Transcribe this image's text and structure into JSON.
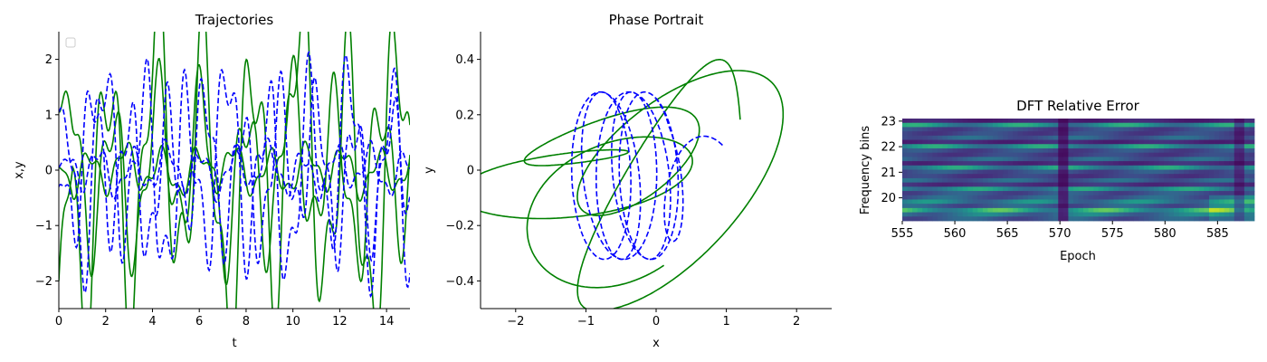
{
  "chart_data": [
    {
      "type": "line",
      "title": "Trajectories",
      "xlabel": "t",
      "ylabel": "x,y",
      "xlim": [
        0,
        15
      ],
      "ylim": [
        -2.5,
        2.5
      ],
      "xticks": [
        0,
        2,
        4,
        6,
        8,
        10,
        12,
        14
      ],
      "yticks": [
        -2,
        -1,
        0,
        1,
        2
      ],
      "grid": false,
      "legend": {
        "location": "upper-left",
        "entries": []
      },
      "colors": {
        "solid": "#008000",
        "dashed": "#0000ff"
      },
      "series": [
        {
          "style": "solid",
          "color": "#008000",
          "x0": 1.05,
          "A": 1.3,
          "period": 1.9,
          "phase": 0.2
        },
        {
          "style": "solid",
          "color": "#008000",
          "x0": -2.0,
          "A": 2.3,
          "period": 2.05,
          "phase": 1.4
        },
        {
          "style": "solid",
          "color": "#008000",
          "x0": 0.05,
          "A": 0.35,
          "period": 1.55,
          "phase": 2.6
        },
        {
          "style": "dashed",
          "color": "#0000ff",
          "x0": 1.05,
          "A": 1.5,
          "period": 1.75,
          "phase": 0.9
        },
        {
          "style": "dashed",
          "color": "#0000ff",
          "x0": -0.3,
          "A": 1.15,
          "period": 1.6,
          "phase": 2.2
        },
        {
          "style": "dashed",
          "color": "#0000ff",
          "x0": 0.05,
          "A": 0.35,
          "period": 1.45,
          "phase": 0.4
        }
      ]
    },
    {
      "type": "line",
      "title": "Phase Portrait",
      "xlabel": "x",
      "ylabel": "y",
      "xlim": [
        -2.5,
        2.5
      ],
      "ylim": [
        -0.5,
        0.5
      ],
      "xticks": [
        -2,
        -1,
        0,
        1,
        2
      ],
      "yticks": [
        -0.4,
        -0.2,
        0.0,
        0.2,
        0.4
      ],
      "grid": false,
      "series": [
        {
          "style": "solid",
          "color": "#008000",
          "start": [
            1.0,
            0.0
          ]
        },
        {
          "style": "dashed",
          "color": "#0000ff",
          "start": [
            1.0,
            0.0
          ]
        }
      ]
    },
    {
      "type": "heatmap",
      "title": "DFT Relative Error",
      "xlabel": "Epoch",
      "ylabel": "Frequency bins",
      "xlim": [
        555,
        588.5
      ],
      "ylim": [
        19.1,
        23.1
      ],
      "xticks": [
        555,
        560,
        565,
        570,
        575,
        580,
        585
      ],
      "yticks": [
        20,
        21,
        22,
        23
      ],
      "colormap": "viridis",
      "grid": false
    }
  ]
}
